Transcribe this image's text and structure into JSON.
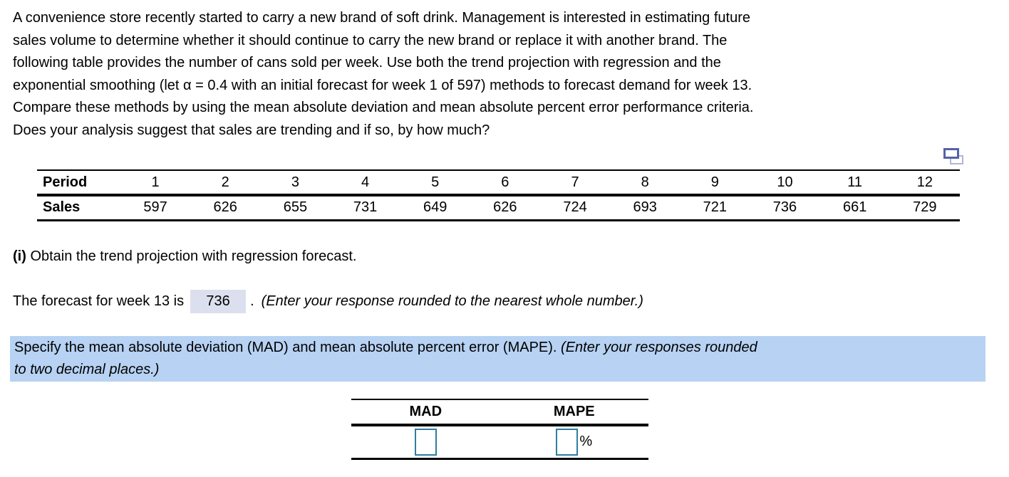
{
  "problem": {
    "lines": [
      "A convenience store recently started to carry a new brand of soft drink. Management is interested in estimating future",
      "sales volume to determine whether it should continue to carry the new brand or replace it with another brand. The",
      "following table provides the number of cans sold per week. Use both the trend projection with regression and the",
      "exponential smoothing (let α = 0.4 with an initial forecast for week 1 of 597) methods to forecast demand for week 13.",
      "Compare these methods by using the mean absolute deviation and mean absolute percent error performance criteria.",
      "Does your analysis suggest that sales are trending and if so, by how much?"
    ]
  },
  "icons": {
    "copy_table": "overlapping-windows-copy-icon"
  },
  "sales_table": {
    "row1_header": "Period",
    "row2_header": "Sales",
    "periods": [
      "1",
      "2",
      "3",
      "4",
      "5",
      "6",
      "7",
      "8",
      "9",
      "10",
      "11",
      "12"
    ],
    "sales": [
      "597",
      "626",
      "655",
      "731",
      "649",
      "626",
      "724",
      "693",
      "721",
      "736",
      "661",
      "729"
    ]
  },
  "part_i": {
    "label": "(i)",
    "text": " Obtain the trend projection with regression forecast."
  },
  "forecast_line": {
    "prefix": "The forecast for week 13 is",
    "answer_value": "736",
    "separator": ".",
    "note_italic": "(Enter your response rounded to the nearest whole number.)"
  },
  "highlight": {
    "normal": "Specify the mean absolute deviation (MAD) and mean absolute percent error (MAPE). ",
    "italic_line1": "(Enter your responses rounded",
    "italic_line2": "to two decimal places.)",
    "bg_color": "#b7d2f3"
  },
  "results_table": {
    "headers": [
      "MAD",
      "MAPE"
    ],
    "mad_value": "",
    "mape_value": "",
    "percent_label": "%",
    "input_border_color": "#2e7e9f"
  },
  "colors": {
    "answer_field_bg": "#dcdfee",
    "highlight_bg": "#b7d2f3",
    "icon_front": "#5661a8",
    "icon_back": "#aeb7da"
  }
}
